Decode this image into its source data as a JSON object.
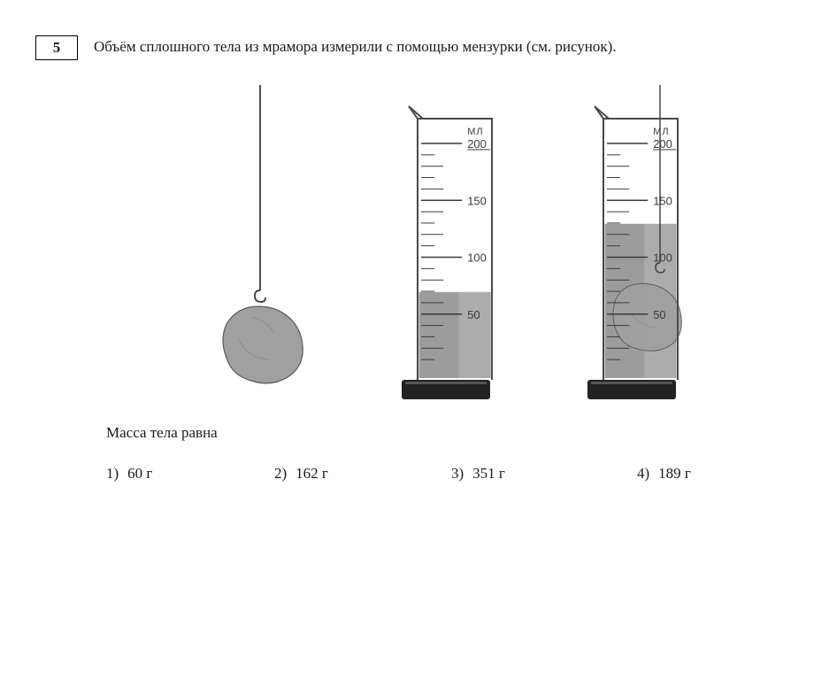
{
  "problem": {
    "number": "5",
    "text": "Объём сплошного тела из мрамора измерили с помощью мензурки (см. рисунок).",
    "sub_question": "Масса тела равна"
  },
  "options": [
    {
      "idx": "1)",
      "text": "60 г"
    },
    {
      "idx": "2)",
      "text": "162 г"
    },
    {
      "idx": "3)",
      "text": "351 г"
    },
    {
      "idx": "4)",
      "text": "189 г"
    }
  ],
  "diagram": {
    "unit_label_top": "МЛ",
    "cylinder_max": 200,
    "major_ticks": [
      50,
      100,
      150,
      200
    ],
    "initial_level": 70,
    "final_level": 130,
    "bg_color": "#ffffff",
    "line_color": "#3a3a3a",
    "fluid_color": "#9c9c9c",
    "fluid_color_light": "#b8b8b8",
    "rock_fill": "#a0a0a0",
    "rock_stroke": "#5a5a5a",
    "base_color": "#222222",
    "glass_stroke": "#4a4a4a",
    "meniscus_highlight": "#ffffff"
  }
}
